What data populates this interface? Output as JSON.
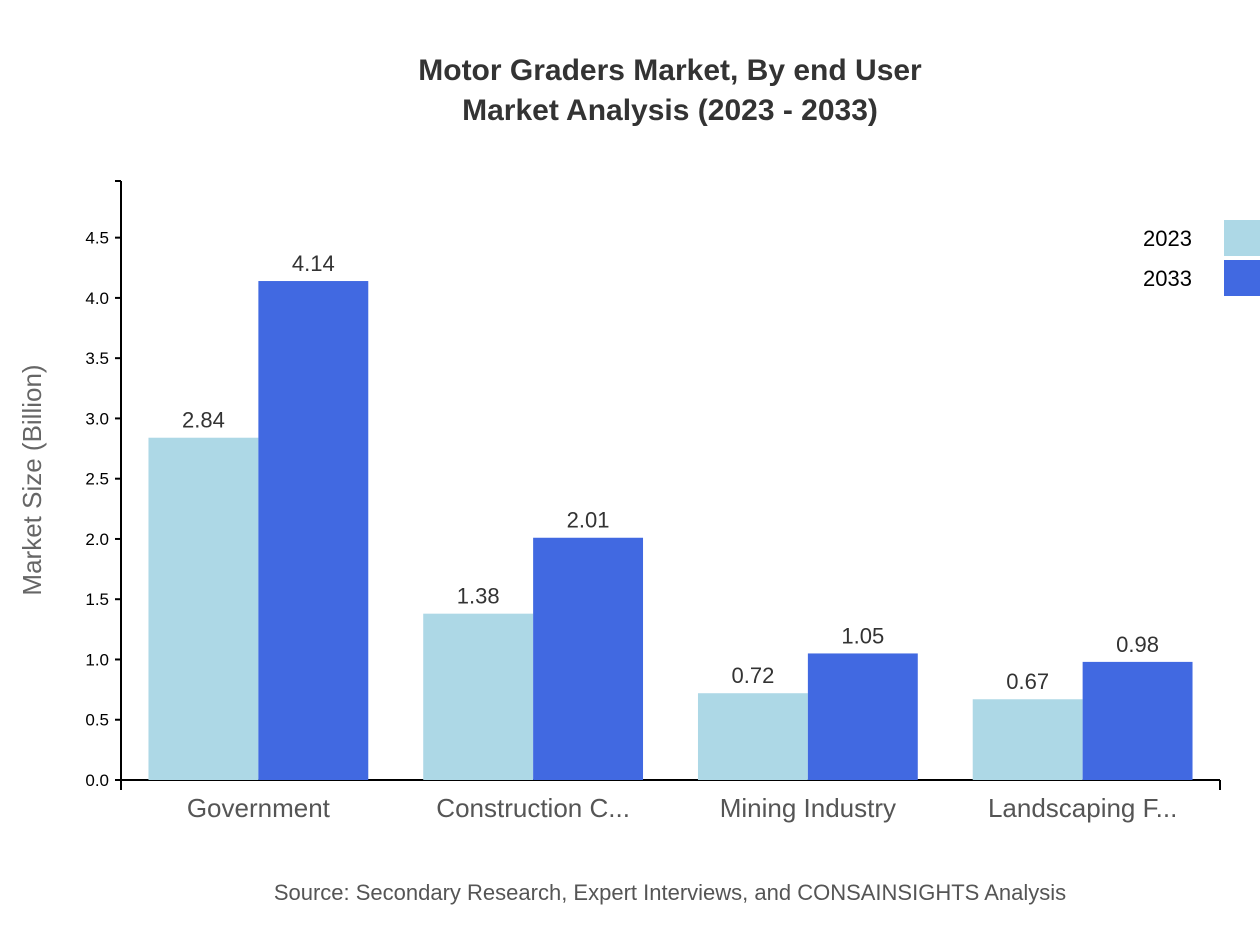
{
  "chart_data": {
    "type": "bar",
    "title": "Motor Graders Market, By end User",
    "subtitle": "Market Analysis (2023 - 2033)",
    "xlabel": "",
    "ylabel": "Market Size (Billion)",
    "categories": [
      "Government",
      "Construction C...",
      "Mining Industry",
      "Landscaping F..."
    ],
    "series": [
      {
        "name": "2023",
        "color": "#ADD8E6",
        "values": [
          2.84,
          1.38,
          0.72,
          0.67
        ]
      },
      {
        "name": "2033",
        "color": "#4169E1",
        "values": [
          4.14,
          2.01,
          1.05,
          0.98
        ]
      }
    ],
    "ylim": [
      0,
      4.97
    ],
    "yticks": [
      "0.0",
      "0.5",
      "1.0",
      "1.5",
      "2.0",
      "2.5",
      "3.0",
      "3.5",
      "4.0",
      "4.5"
    ],
    "grid": false,
    "legend_position": "top-right",
    "source": "Source: Secondary Research, Expert Interviews, and CONSAINSIGHTS Analysis"
  }
}
